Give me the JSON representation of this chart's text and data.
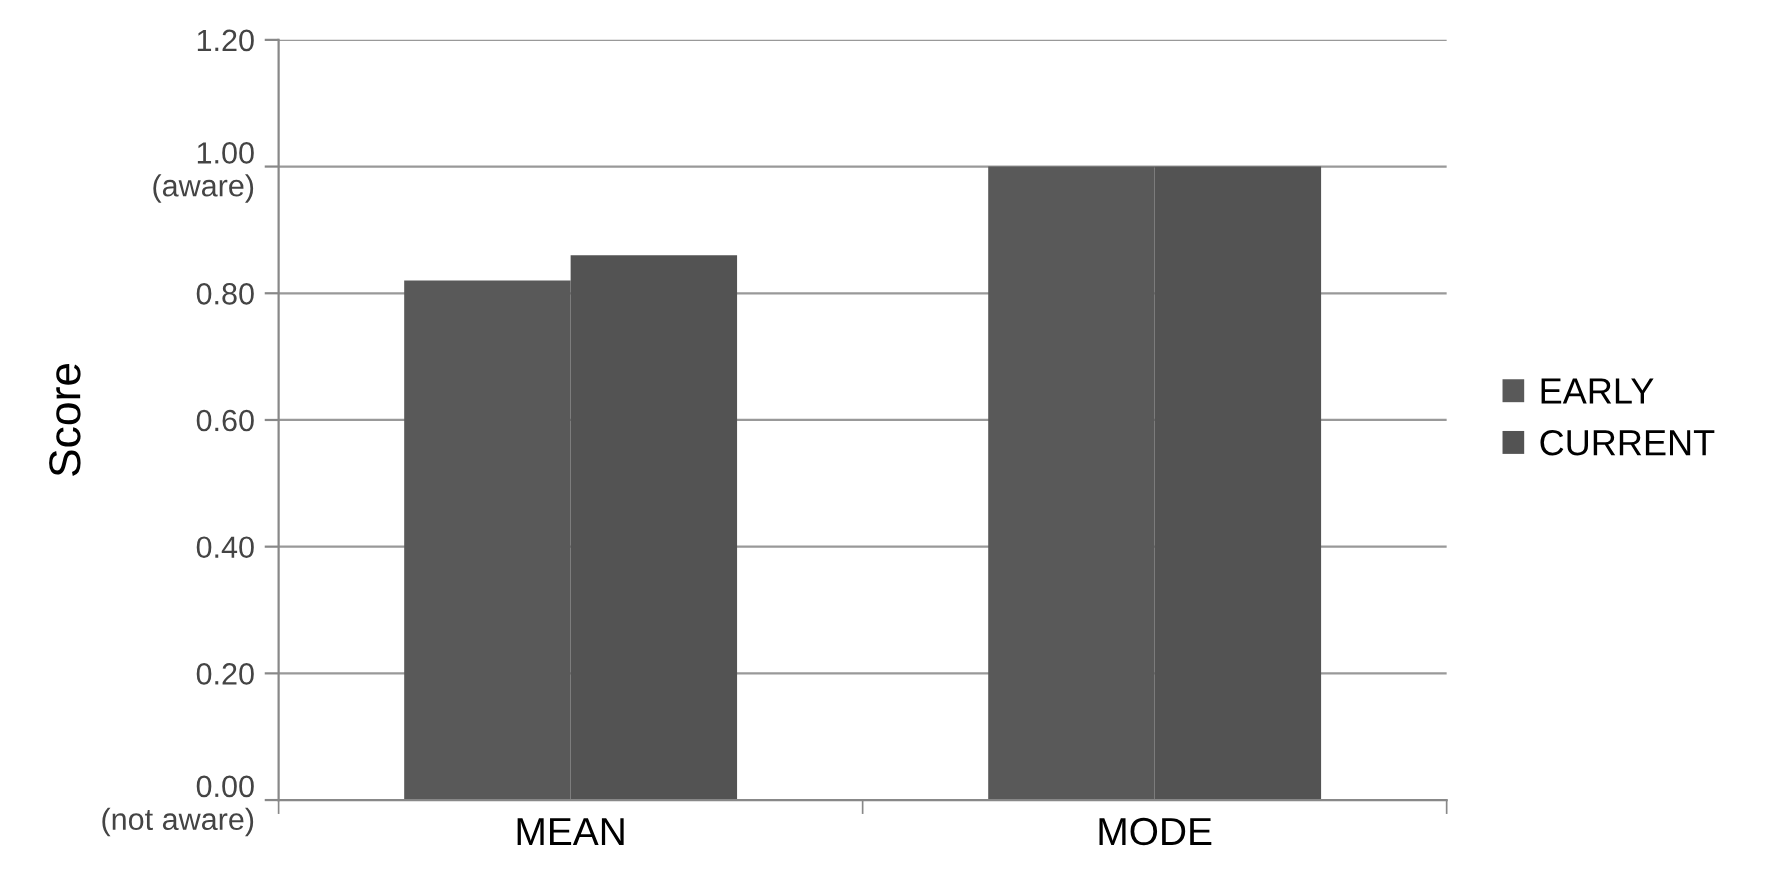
{
  "chart_data": {
    "type": "bar",
    "ylabel": "Score",
    "categories": [
      "MEAN",
      "MODE"
    ],
    "series": [
      {
        "name": "EARLY",
        "color": "#595959",
        "values": [
          0.82,
          1.0
        ]
      },
      {
        "name": "CURRENT",
        "color": "#535353",
        "values": [
          0.86,
          1.0
        ]
      }
    ],
    "ylim": [
      0,
      1.2
    ],
    "yticks": [
      {
        "value": 0,
        "label": "0.00\n(not aware)"
      },
      "0.20",
      "0.40",
      "0.60",
      "0.80",
      {
        "value": 1.0,
        "label": "1.00\n(aware)"
      },
      "1.20"
    ],
    "grid": "y",
    "legend": "right"
  }
}
